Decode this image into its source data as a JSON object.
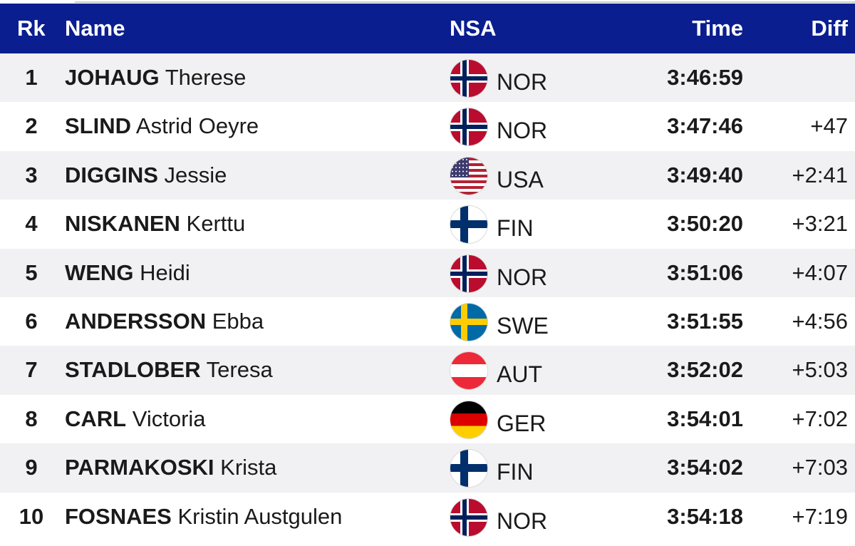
{
  "header": {
    "rank": "Rk",
    "name": "Name",
    "nsa": "NSA",
    "time": "Time",
    "diff": "Diff"
  },
  "rows": [
    {
      "rank": "1",
      "surname": "JOHAUG",
      "firstname": "Therese",
      "flag_icon": "norway-flag-icon",
      "nsa": "NOR",
      "time": "3:46:59",
      "diff": ""
    },
    {
      "rank": "2",
      "surname": "SLIND",
      "firstname": "Astrid Oeyre",
      "flag_icon": "norway-flag-icon",
      "nsa": "NOR",
      "time": "3:47:46",
      "diff": "+47"
    },
    {
      "rank": "3",
      "surname": "DIGGINS",
      "firstname": "Jessie",
      "flag_icon": "usa-flag-icon",
      "nsa": "USA",
      "time": "3:49:40",
      "diff": "+2:41"
    },
    {
      "rank": "4",
      "surname": "NISKANEN",
      "firstname": "Kerttu",
      "flag_icon": "finland-flag-icon",
      "nsa": "FIN",
      "time": "3:50:20",
      "diff": "+3:21"
    },
    {
      "rank": "5",
      "surname": "WENG",
      "firstname": "Heidi",
      "flag_icon": "norway-flag-icon",
      "nsa": "NOR",
      "time": "3:51:06",
      "diff": "+4:07"
    },
    {
      "rank": "6",
      "surname": "ANDERSSON",
      "firstname": "Ebba",
      "flag_icon": "sweden-flag-icon",
      "nsa": "SWE",
      "time": "3:51:55",
      "diff": "+4:56"
    },
    {
      "rank": "7",
      "surname": "STADLOBER",
      "firstname": "Teresa",
      "flag_icon": "austria-flag-icon",
      "nsa": "AUT",
      "time": "3:52:02",
      "diff": "+5:03"
    },
    {
      "rank": "8",
      "surname": "CARL",
      "firstname": "Victoria",
      "flag_icon": "germany-flag-icon",
      "nsa": "GER",
      "time": "3:54:01",
      "diff": "+7:02"
    },
    {
      "rank": "9",
      "surname": "PARMAKOSKI",
      "firstname": "Krista",
      "flag_icon": "finland-flag-icon",
      "nsa": "FIN",
      "time": "3:54:02",
      "diff": "+7:03"
    },
    {
      "rank": "10",
      "surname": "FOSNAES",
      "firstname": "Kristin Austgulen",
      "flag_icon": "norway-flag-icon",
      "nsa": "NOR",
      "time": "3:54:18",
      "diff": "+7:19"
    }
  ],
  "colors": {
    "header_bg": "#0a1e8f",
    "row_alt": "#f1f1f3"
  }
}
